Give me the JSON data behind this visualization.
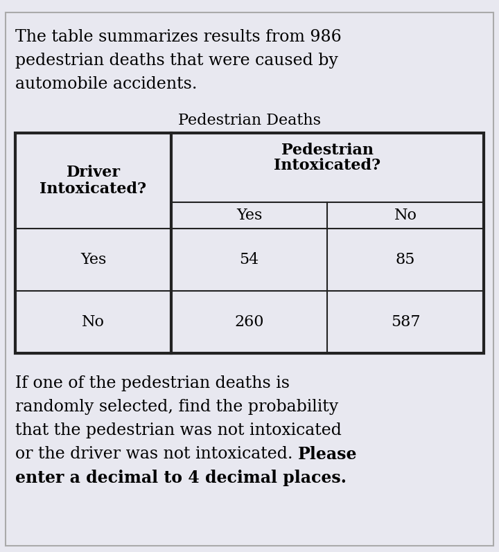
{
  "bg_color": "#e8e8f0",
  "border_color_outer": "#aaaaaa",
  "border_color_table": "#222222",
  "text_color": "#000000",
  "intro_text_lines": [
    "The table summarizes results from 986",
    "pedestrian deaths that were caused by",
    "automobile accidents."
  ],
  "table_title": "Pedestrian Deaths",
  "col_header_line1": "Pedestrian",
  "col_header_line2": "Intoxicated?",
  "row_header_line1": "Driver",
  "row_header_line2": "Intoxicated?",
  "sub_col_yes": "Yes",
  "sub_col_no": "No",
  "row1_label": "Yes",
  "row2_label": "No",
  "data": [
    [
      54,
      85
    ],
    [
      260,
      587
    ]
  ],
  "question_lines": [
    [
      [
        "If one of the pedestrian deaths is",
        false
      ]
    ],
    [
      [
        "randomly selected, find the probability",
        false
      ]
    ],
    [
      [
        "that the pedestrian was not intoxicated",
        false
      ]
    ],
    [
      [
        "or the driver was not intoxicated. ",
        false
      ],
      [
        "Please",
        true
      ]
    ],
    [
      [
        "enter a decimal to 4 decimal places.",
        true
      ]
    ]
  ],
  "font_family": "DejaVu Serif",
  "intro_fontsize": 17,
  "table_title_fontsize": 16,
  "header_fontsize": 16,
  "cell_fontsize": 16,
  "question_fontsize": 17
}
